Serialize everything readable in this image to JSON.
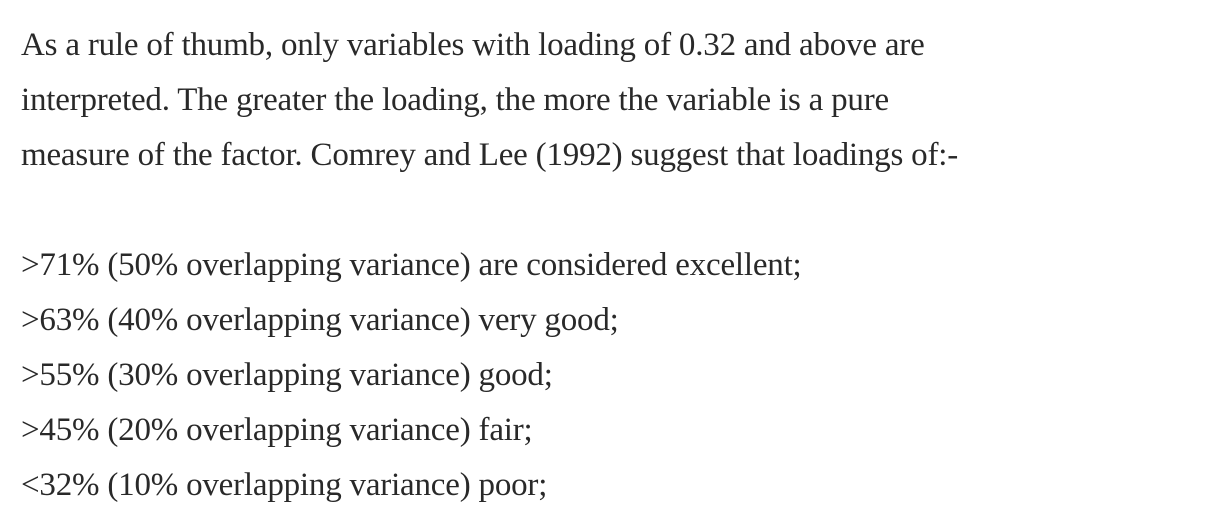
{
  "intro": {
    "line1": "As a rule of thumb, only variables with loading of 0.32 and above are",
    "line2": "interpreted. The greater the loading, the more the variable is a pure",
    "line3": "measure of the factor. Comrey and Lee (1992) suggest that loadings of:-"
  },
  "thresholds": [
    {
      "text": ">71% (50% overlapping variance) are considered excellent;"
    },
    {
      "text": ">63% (40% overlapping variance) very good;"
    },
    {
      "text": ">55% (30% overlapping variance) good;"
    },
    {
      "text": ">45% (20% overlapping variance) fair;"
    },
    {
      "text": "<32% (10% overlapping variance) poor;"
    }
  ]
}
